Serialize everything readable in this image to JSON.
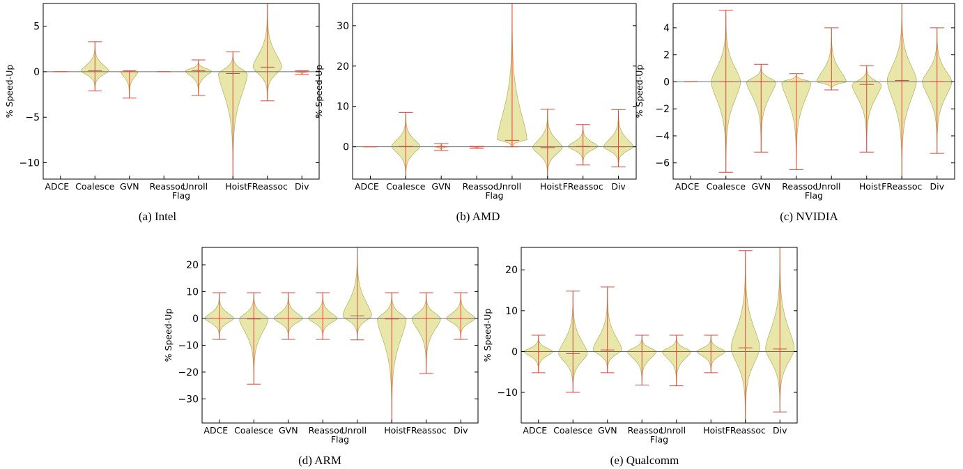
{
  "colors": {
    "violin_fill": "#e8e6a8",
    "violin_edge": "#b9b66a",
    "whisker": "#e0443a",
    "zero_line": "#6b6b6b"
  },
  "chart_data": [
    {
      "id": "intel",
      "type": "violin",
      "caption": "(a)  Intel",
      "xlabel": "Flag",
      "ylabel": "% Speed-Up",
      "categories": [
        "ADCE",
        "Coalesce",
        "GVN",
        "Reassoc",
        "Unroll",
        "Hoist",
        "FReassoc",
        "Div"
      ],
      "cat_label_x": [
        0.9,
        2.0,
        3.0,
        4.1,
        4.9,
        6.1,
        7.0,
        8.0
      ],
      "ylim": [
        -11.8,
        7.5
      ],
      "yticks": [
        -10,
        -5,
        0,
        5
      ],
      "xlim": [
        0.5,
        8.5
      ],
      "series": [
        {
          "min": 0,
          "max": 0,
          "mean": 0,
          "width": 0.12
        },
        {
          "min": -2.1,
          "max": 3.3,
          "mean": 0.1,
          "width": 0.4
        },
        {
          "min": -2.9,
          "max": 0.1,
          "mean": 0.0,
          "width": 0.25
        },
        {
          "min": 0,
          "max": 0,
          "mean": 0,
          "width": 0.12
        },
        {
          "min": -2.6,
          "max": 1.3,
          "mean": 0.1,
          "width": 0.38
        },
        {
          "min": -11.8,
          "max": 2.2,
          "mean": -0.2,
          "width": 0.42
        },
        {
          "min": -3.2,
          "max": 7.5,
          "mean": 0.5,
          "width": 0.42
        },
        {
          "min": -0.3,
          "max": 0.1,
          "mean": 0.0,
          "width": 0.2
        }
      ]
    },
    {
      "id": "amd",
      "type": "violin",
      "caption": "(b)  AMD",
      "xlabel": "Flag",
      "ylabel": "% Speed-Up",
      "categories": [
        "ADCE",
        "Coalesce",
        "GVN",
        "Reassoc",
        "Unroll",
        "Hoist",
        "FReassoc",
        "Div"
      ],
      "cat_label_x": [
        0.9,
        2.0,
        3.0,
        4.1,
        4.9,
        6.1,
        7.0,
        8.0
      ],
      "ylim": [
        -8,
        35.5
      ],
      "yticks": [
        0,
        10,
        20,
        30
      ],
      "xlim": [
        0.5,
        8.5
      ],
      "series": [
        {
          "min": 0,
          "max": 0,
          "mean": 0,
          "width": 0.12
        },
        {
          "min": -8,
          "max": 8.5,
          "mean": 0.1,
          "width": 0.4
        },
        {
          "min": -0.9,
          "max": 0.8,
          "mean": 0.0,
          "width": 0.15
        },
        {
          "min": -0.4,
          "max": 0.1,
          "mean": 0.0,
          "width": 0.15
        },
        {
          "min": 0,
          "max": 35.5,
          "mean": 1.6,
          "width": 0.42
        },
        {
          "min": -8,
          "max": 9.3,
          "mean": -0.2,
          "width": 0.42
        },
        {
          "min": -4.5,
          "max": 5.5,
          "mean": 0.1,
          "width": 0.42
        },
        {
          "min": -5.0,
          "max": 9.2,
          "mean": 0.0,
          "width": 0.42
        }
      ]
    },
    {
      "id": "nvidia",
      "type": "violin",
      "caption": "(c)  NVIDIA",
      "xlabel": "Flag",
      "ylabel": "% Speed-Up",
      "categories": [
        "ADCE",
        "Coalesce",
        "GVN",
        "Reassoc",
        "Unroll",
        "Hoist",
        "FReassoc",
        "Div"
      ],
      "cat_label_x": [
        0.9,
        2.0,
        3.0,
        4.1,
        4.9,
        6.1,
        7.0,
        8.0
      ],
      "ylim": [
        -7.2,
        5.8
      ],
      "yticks": [
        -6,
        -4,
        -2,
        0,
        2,
        4
      ],
      "xlim": [
        0.5,
        8.5
      ],
      "series": [
        {
          "min": 0,
          "max": 0,
          "mean": 0,
          "width": 0.12
        },
        {
          "min": -6.7,
          "max": 5.3,
          "mean": 0.0,
          "width": 0.42
        },
        {
          "min": -5.2,
          "max": 1.3,
          "mean": 0.0,
          "width": 0.42
        },
        {
          "min": -6.5,
          "max": 0.6,
          "mean": 0.0,
          "width": 0.42
        },
        {
          "min": -0.6,
          "max": 4.0,
          "mean": 0.0,
          "width": 0.42
        },
        {
          "min": -5.2,
          "max": 1.2,
          "mean": -0.2,
          "width": 0.42
        },
        {
          "min": -7.2,
          "max": 5.8,
          "mean": 0.1,
          "width": 0.42
        },
        {
          "min": -5.3,
          "max": 4.0,
          "mean": 0.0,
          "width": 0.42
        }
      ]
    },
    {
      "id": "arm",
      "type": "violin",
      "caption": "(d)  ARM",
      "xlabel": "Flag",
      "ylabel": "% Speed-Up",
      "categories": [
        "ADCE",
        "Coalesce",
        "GVN",
        "Reassoc",
        "Unroll",
        "Hoist",
        "FReassoc",
        "Div"
      ],
      "cat_label_x": [
        0.9,
        2.0,
        3.0,
        4.1,
        4.9,
        6.1,
        7.0,
        8.0
      ],
      "ylim": [
        -39,
        26.5
      ],
      "yticks": [
        -30,
        -20,
        -10,
        0,
        10,
        20
      ],
      "xlim": [
        0.5,
        8.5
      ],
      "series": [
        {
          "min": -7.8,
          "max": 9.6,
          "mean": 0.0,
          "width": 0.42
        },
        {
          "min": -24.5,
          "max": 9.6,
          "mean": -0.2,
          "width": 0.42
        },
        {
          "min": -7.8,
          "max": 9.6,
          "mean": 0.0,
          "width": 0.42
        },
        {
          "min": -7.8,
          "max": 9.6,
          "mean": 0.0,
          "width": 0.42
        },
        {
          "min": -8.0,
          "max": 26.5,
          "mean": 1.0,
          "width": 0.42
        },
        {
          "min": -39,
          "max": 9.6,
          "mean": -0.2,
          "width": 0.42
        },
        {
          "min": -20.5,
          "max": 9.6,
          "mean": 0.0,
          "width": 0.42
        },
        {
          "min": -7.8,
          "max": 9.6,
          "mean": 0.0,
          "width": 0.42
        }
      ]
    },
    {
      "id": "qualcomm",
      "type": "violin",
      "caption": "(e)  Qualcomm",
      "xlabel": "Flag",
      "ylabel": "% Speed-Up",
      "categories": [
        "ADCE",
        "Coalesce",
        "GVN",
        "Reassoc",
        "Unroll",
        "Hoist",
        "FReassoc",
        "Div"
      ],
      "cat_label_x": [
        0.9,
        2.0,
        3.0,
        4.1,
        4.9,
        6.1,
        7.0,
        8.0
      ],
      "ylim": [
        -17.5,
        25.5
      ],
      "yticks": [
        -10,
        0,
        10,
        20
      ],
      "xlim": [
        0.5,
        8.5
      ],
      "series": [
        {
          "min": -5.2,
          "max": 4.0,
          "mean": 0.0,
          "width": 0.42
        },
        {
          "min": -10.0,
          "max": 14.8,
          "mean": -0.5,
          "width": 0.42
        },
        {
          "min": -5.2,
          "max": 15.8,
          "mean": 0.4,
          "width": 0.42
        },
        {
          "min": -8.2,
          "max": 4.0,
          "mean": 0.0,
          "width": 0.42
        },
        {
          "min": -8.4,
          "max": 4.0,
          "mean": 0.0,
          "width": 0.42
        },
        {
          "min": -5.2,
          "max": 4.0,
          "mean": 0.0,
          "width": 0.42
        },
        {
          "min": -17.5,
          "max": 24.7,
          "mean": 0.9,
          "width": 0.42
        },
        {
          "min": -14.8,
          "max": 25.5,
          "mean": 0.6,
          "width": 0.42
        }
      ]
    }
  ]
}
